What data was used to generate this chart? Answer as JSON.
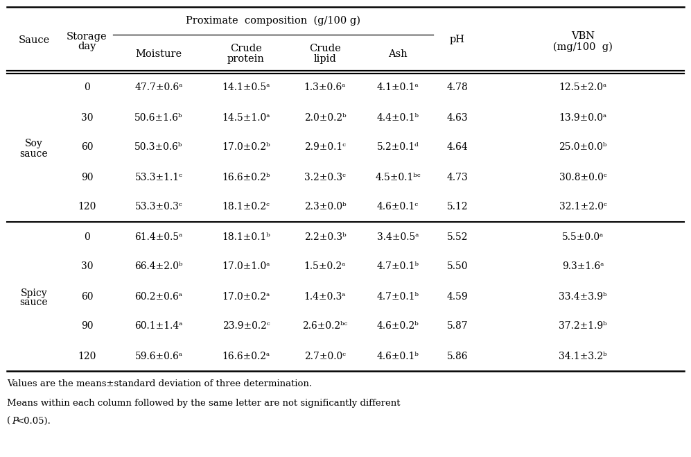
{
  "soy_rows": [
    [
      "0",
      "47.7±0.6ᵃ",
      "14.1±0.5ᵃ",
      "1.3±0.6ᵃ",
      "4.1±0.1ᵃ",
      "4.78",
      "12.5±2.0ᵃ"
    ],
    [
      "30",
      "50.6±1.6ᵇ",
      "14.5±1.0ᵃ",
      "2.0±0.2ᵇ",
      "4.4±0.1ᵇ",
      "4.63",
      "13.9±0.0ᵃ"
    ],
    [
      "60",
      "50.3±0.6ᵇ",
      "17.0±0.2ᵇ",
      "2.9±0.1ᶜ",
      "5.2±0.1ᵈ",
      "4.64",
      "25.0±0.0ᵇ"
    ],
    [
      "90",
      "53.3±1.1ᶜ",
      "16.6±0.2ᵇ",
      "3.2±0.3ᶜ",
      "4.5±0.1ᵇᶜ",
      "4.73",
      "30.8±0.0ᶜ"
    ],
    [
      "120",
      "53.3±0.3ᶜ",
      "18.1±0.2ᶜ",
      "2.3±0.0ᵇ",
      "4.6±0.1ᶜ",
      "5.12",
      "32.1±2.0ᶜ"
    ]
  ],
  "spicy_rows": [
    [
      "0",
      "61.4±0.5ᵃ",
      "18.1±0.1ᵇ",
      "2.2±0.3ᵇ",
      "3.4±0.5ᵃ",
      "5.52",
      "5.5±0.0ᵃ"
    ],
    [
      "30",
      "66.4±2.0ᵇ",
      "17.0±1.0ᵃ",
      "1.5±0.2ᵃ",
      "4.7±0.1ᵇ",
      "5.50",
      "9.3±1.6ᵃ"
    ],
    [
      "60",
      "60.2±0.6ᵃ",
      "17.0±0.2ᵃ",
      "1.4±0.3ᵃ",
      "4.7±0.1ᵇ",
      "4.59",
      "33.4±3.9ᵇ"
    ],
    [
      "90",
      "60.1±1.4ᵃ",
      "23.9±0.2ᶜ",
      "2.6±0.2ᵇᶜ",
      "4.6±0.2ᵇ",
      "5.87",
      "37.2±1.9ᵇ"
    ],
    [
      "120",
      "59.6±0.6ᵃ",
      "16.6±0.2ᵃ",
      "2.7±0.0ᶜ",
      "4.6±0.1ᵇ",
      "5.86",
      "34.1±3.2ᵇ"
    ]
  ],
  "footnote1": "Values are the means±standard deviation of three determination.",
  "footnote2": "Means within each column followed by the same letter are not significantly different",
  "footnote3": "P<0.05).",
  "bg_color": "#ffffff",
  "text_color": "#000000"
}
